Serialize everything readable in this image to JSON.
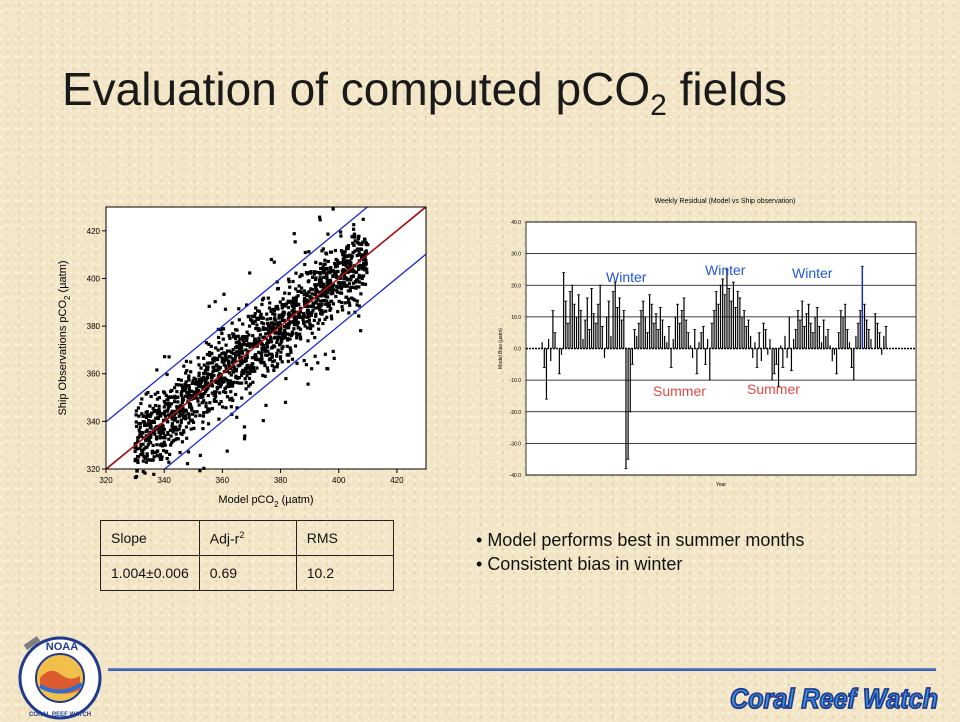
{
  "slide": {
    "title_main": "Evaluation of computed pCO",
    "title_sub": "2",
    "title_end": " fields"
  },
  "table": {
    "headers": [
      "Slope",
      "Adj-r",
      "RMS"
    ],
    "header_sup": "2",
    "row": [
      "1.004±0.006",
      "0.69",
      "10.2"
    ]
  },
  "bullets": [
    "Model performs best in summer months",
    "Consistent bias in winter"
  ],
  "logos": {
    "noaa_text": "NOAA",
    "noaa_ring_text": "CORAL REEF WATCH",
    "brand_text": "Coral Reef Watch"
  },
  "colors": {
    "background": "#f3e6c6",
    "regression_line": "#cc1111",
    "confidence_lines": "#1a2bd6",
    "season_label": "#2255dd",
    "summer_label": "#e04848",
    "divider": "#3d5fb8",
    "brand": "#1f3a8f"
  },
  "chart_data": [
    {
      "type": "scatter",
      "title": "",
      "xlabel": "Model pCO",
      "xlabel_sub": "2",
      "xlabel_unit": " (µatm)",
      "ylabel": "Ship Observations pCO",
      "ylabel_sub": "2",
      "ylabel_unit": " (µatm)",
      "xlim": [
        320,
        430
      ],
      "ylim": [
        320,
        430
      ],
      "xticks": [
        320,
        340,
        360,
        380,
        400,
        420
      ],
      "yticks": [
        320,
        340,
        360,
        380,
        400,
        420
      ],
      "lines": {
        "one_to_one": {
          "slope": 1,
          "intercept": 0
        },
        "regression": {
          "slope": 1.004,
          "intercept": -1.5
        },
        "upper_bound": {
          "slope": 1.004,
          "intercept": 18.5
        },
        "lower_bound": {
          "slope": 1.004,
          "intercept": -21.5
        }
      },
      "cloud": {
        "x_range": [
          330,
          410
        ],
        "center_slope": 1.0,
        "spread": 9
      }
    },
    {
      "type": "bar",
      "title": "Weekly Residual (Model vs Ship observation)",
      "xlabel": "Year",
      "ylabel": "Model Bias (µatm)",
      "ylim": [
        -40,
        40
      ],
      "yticks": [
        -40,
        -30,
        -20,
        -10,
        0,
        10,
        20,
        30,
        40
      ],
      "annotations": [
        "Winter",
        "Winter",
        "Winter",
        "Summer",
        "Summer"
      ],
      "values": [
        0,
        2,
        -6,
        -16,
        3,
        -4,
        12,
        5,
        0,
        -8,
        -2,
        24,
        15,
        8,
        18,
        20,
        14,
        10,
        17,
        12,
        3,
        9,
        16,
        6,
        19,
        11,
        8,
        14,
        20,
        7,
        -3,
        10,
        15,
        4,
        18,
        21,
        13,
        16,
        9,
        12,
        -38,
        -35,
        -20,
        -5,
        6,
        4,
        8,
        12,
        15,
        10,
        5,
        17,
        14,
        8,
        11,
        6,
        13,
        9,
        4,
        2,
        7,
        -6,
        3,
        10,
        14,
        8,
        12,
        16,
        9,
        5,
        1,
        -3,
        6,
        -8,
        2,
        5,
        7,
        -5,
        3,
        -10,
        8,
        12,
        18,
        14,
        20,
        22,
        17,
        25,
        19,
        15,
        21,
        13,
        18,
        16,
        10,
        12,
        7,
        9,
        4,
        -3,
        2,
        -6,
        5,
        -4,
        8,
        6,
        -2,
        3,
        -10,
        -8,
        -5,
        -12,
        1,
        -6,
        4,
        -3,
        10,
        -7,
        3,
        6,
        12,
        9,
        15,
        7,
        11,
        14,
        8,
        5,
        10,
        13,
        7,
        2,
        9,
        4,
        6,
        1,
        -4,
        -2,
        -8,
        5,
        12,
        10,
        14,
        6,
        2,
        -6,
        -10,
        4,
        8,
        12,
        26,
        14,
        9,
        6,
        3,
        0,
        11,
        8,
        5,
        -2,
        4,
        7
      ]
    }
  ]
}
